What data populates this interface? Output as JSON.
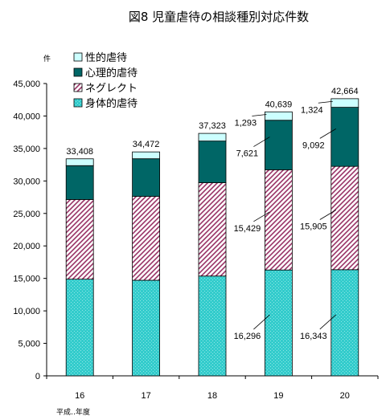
{
  "chart_data": {
    "type": "bar",
    "stacked": true,
    "title": "図8 児童虐待の相談種別対応件数",
    "ylabel": "件",
    "xlabel": "平成‥年度",
    "categories": [
      "16",
      "17",
      "18",
      "19",
      "20"
    ],
    "ylim": [
      0,
      45000
    ],
    "yticks": [
      "0",
      "5,000",
      "10,000",
      "15,000",
      "20,000",
      "25,000",
      "30,000",
      "35,000",
      "40,000",
      "45,000"
    ],
    "ytick_values": [
      0,
      5000,
      10000,
      15000,
      20000,
      25000,
      30000,
      35000,
      40000,
      45000
    ],
    "grid": false,
    "legend_position": "top-left",
    "series": [
      {
        "name": "身体的虐待",
        "color": "#33cccc",
        "pattern": "dots",
        "values": [
          14881,
          14712,
          15364,
          16296,
          16343
        ],
        "labels": [
          "",
          "",
          "",
          "16,296",
          "16,343"
        ]
      },
      {
        "name": "ネグレクト",
        "color": "#993366",
        "pattern": "diagonal",
        "values": [
          12263,
          12911,
          14365,
          15429,
          15905
        ],
        "labels": [
          "",
          "",
          "",
          "15,429",
          "15,905"
        ]
      },
      {
        "name": "心理的虐待",
        "color": "#006666",
        "pattern": "solid",
        "values": [
          5216,
          5797,
          6414,
          7621,
          9092
        ],
        "labels": [
          "",
          "",
          "",
          "7,621",
          "9,092"
        ]
      },
      {
        "name": "性的虐待",
        "color": "#ccffff",
        "pattern": "solid",
        "values": [
          1048,
          1052,
          1180,
          1293,
          1324
        ],
        "labels": [
          "",
          "",
          "",
          "1,293",
          "1,324"
        ]
      }
    ],
    "totals": [
      33408,
      34472,
      37323,
      40639,
      42664
    ],
    "total_labels": [
      "33,408",
      "34,472",
      "37,323",
      "40,639",
      "42,664"
    ]
  }
}
